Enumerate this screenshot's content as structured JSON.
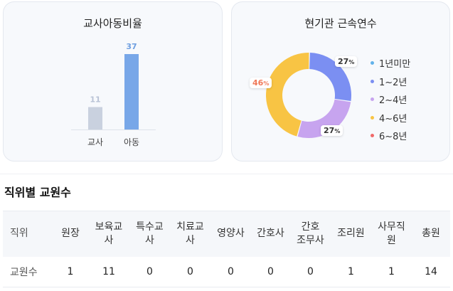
{
  "ratio_card": {
    "title": "교사아동비율",
    "chart_data": {
      "type": "bar",
      "categories": [
        "교사",
        "아동"
      ],
      "values": [
        11,
        37
      ],
      "colors": [
        "#c9d1df",
        "#78a7e8"
      ],
      "value_label_colors": [
        "#b9c3d6",
        "#6f9fe0"
      ]
    }
  },
  "tenure_card": {
    "title": "현기관 근속연수",
    "chart_data": {
      "type": "pie",
      "donut": true,
      "series": [
        {
          "name": "1년미만",
          "value": 0,
          "color": "#62b2ea"
        },
        {
          "name": "1~2년",
          "value": 27,
          "color": "#7b8ff2"
        },
        {
          "name": "2~4년",
          "value": 27,
          "color": "#c7a4ef"
        },
        {
          "name": "4~6년",
          "value": 46,
          "color": "#f8c444"
        },
        {
          "name": "6~8년",
          "value": 0,
          "color": "#f06a6a"
        }
      ]
    },
    "labels": {
      "a": "27",
      "b": "27",
      "c": "46",
      "unit": "%"
    }
  },
  "staff_section": {
    "title": "직위별 교원수",
    "header": {
      "c0": "직위",
      "c1": "원장",
      "c2": "보육교\n사",
      "c3": "특수교\n사",
      "c4": "치료교\n사",
      "c5": "영양사",
      "c6": "간호사",
      "c7": "간호\n조무사",
      "c8": "조리원",
      "c9": "사무직\n원",
      "c10": "총원"
    },
    "row": {
      "c0": "교원수",
      "c1": "1",
      "c2": "11",
      "c3": "0",
      "c4": "0",
      "c5": "0",
      "c6": "0",
      "c7": "0",
      "c8": "1",
      "c9": "1",
      "c10": "14"
    }
  }
}
